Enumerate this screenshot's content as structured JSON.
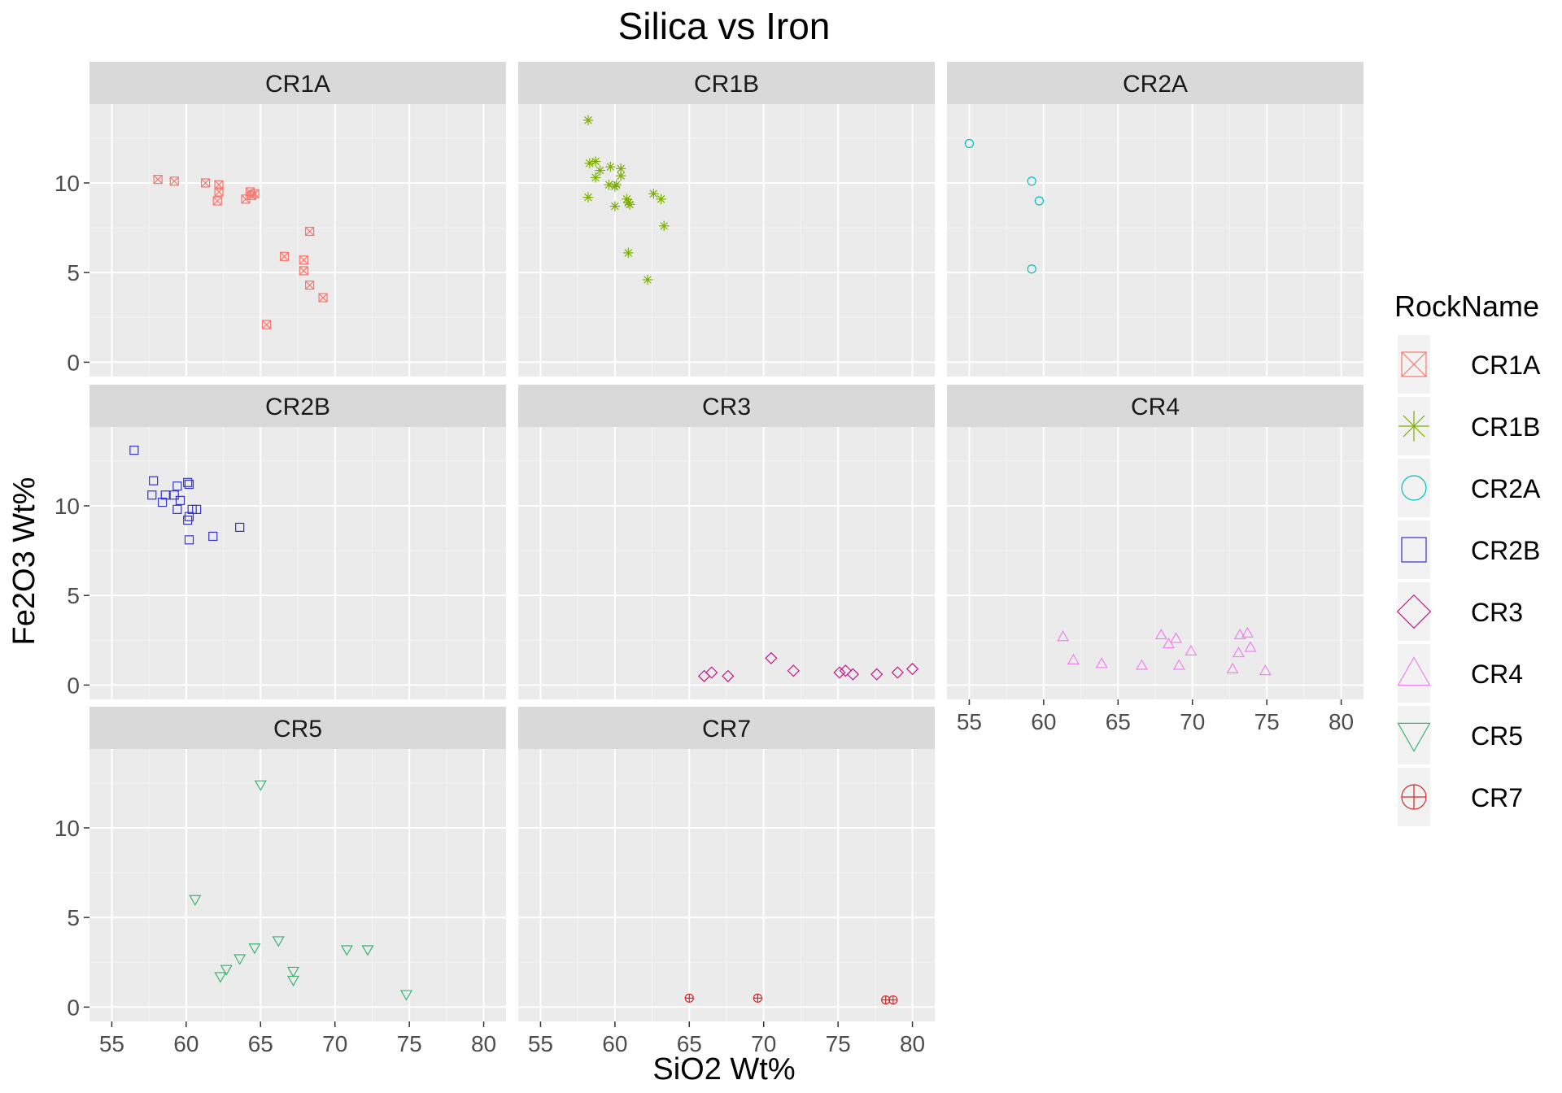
{
  "chart_data": {
    "type": "scatter",
    "title": "Silica vs Iron",
    "xlabel": "SiO2 Wt%",
    "ylabel": "Fe2O3 Wt%",
    "xlim": [
      53.5,
      81.5
    ],
    "ylim": [
      -0.8,
      14.4
    ],
    "x_ticks": [
      55,
      60,
      65,
      70,
      75,
      80
    ],
    "y_ticks": [
      0,
      5,
      10
    ],
    "grid": true,
    "legend_title": "RockName",
    "legend_position": "right",
    "series": [
      {
        "name": "CR1A",
        "color": "#f8766d",
        "shape": "square-cross",
        "points": [
          [
            58.1,
            10.2
          ],
          [
            59.2,
            10.1
          ],
          [
            61.3,
            10.0
          ],
          [
            62.2,
            9.9
          ],
          [
            62.2,
            9.5
          ],
          [
            62.1,
            9.0
          ],
          [
            64.0,
            9.1
          ],
          [
            64.3,
            9.5
          ],
          [
            64.6,
            9.4
          ],
          [
            64.4,
            9.3
          ],
          [
            68.3,
            7.3
          ],
          [
            66.6,
            5.9
          ],
          [
            67.9,
            5.7
          ],
          [
            67.9,
            5.1
          ],
          [
            68.3,
            4.3
          ],
          [
            69.2,
            3.6
          ],
          [
            65.4,
            2.1
          ]
        ]
      },
      {
        "name": "CR1B",
        "color": "#7cae00",
        "shape": "asterisk",
        "points": [
          [
            58.2,
            13.5
          ],
          [
            58.3,
            11.1
          ],
          [
            58.7,
            11.2
          ],
          [
            59.0,
            10.7
          ],
          [
            58.7,
            10.3
          ],
          [
            59.7,
            10.9
          ],
          [
            60.4,
            10.8
          ],
          [
            60.4,
            10.4
          ],
          [
            59.6,
            9.9
          ],
          [
            60.1,
            9.9
          ],
          [
            60.0,
            9.8
          ],
          [
            58.2,
            9.2
          ],
          [
            62.6,
            9.4
          ],
          [
            63.1,
            9.1
          ],
          [
            60.8,
            9.1
          ],
          [
            60.9,
            8.9
          ],
          [
            61.0,
            8.8
          ],
          [
            60.0,
            8.7
          ],
          [
            63.3,
            7.6
          ],
          [
            60.9,
            6.1
          ],
          [
            62.2,
            4.6
          ]
        ]
      },
      {
        "name": "CR2A",
        "color": "#00bfc4",
        "shape": "circle",
        "points": [
          [
            55.0,
            12.2
          ],
          [
            59.2,
            10.1
          ],
          [
            59.7,
            9.0
          ],
          [
            59.2,
            5.2
          ]
        ]
      },
      {
        "name": "CR2B",
        "color": "#3333cc",
        "shape": "square",
        "points": [
          [
            56.5,
            13.1
          ],
          [
            57.8,
            11.4
          ],
          [
            57.7,
            10.6
          ],
          [
            58.4,
            10.2
          ],
          [
            58.6,
            10.6
          ],
          [
            59.2,
            10.6
          ],
          [
            59.4,
            11.1
          ],
          [
            59.6,
            10.3
          ],
          [
            59.4,
            9.8
          ],
          [
            60.1,
            11.3
          ],
          [
            60.2,
            11.2
          ],
          [
            60.4,
            9.8
          ],
          [
            60.7,
            9.8
          ],
          [
            60.2,
            9.4
          ],
          [
            60.1,
            9.2
          ],
          [
            60.2,
            8.1
          ],
          [
            61.8,
            8.3
          ],
          [
            63.6,
            8.8
          ]
        ]
      },
      {
        "name": "CR3",
        "color": "#c71585",
        "shape": "diamond",
        "points": [
          [
            66.0,
            0.5
          ],
          [
            66.5,
            0.7
          ],
          [
            67.6,
            0.5
          ],
          [
            70.5,
            1.5
          ],
          [
            72.0,
            0.8
          ],
          [
            75.1,
            0.7
          ],
          [
            75.5,
            0.8
          ],
          [
            76.0,
            0.6
          ],
          [
            77.6,
            0.6
          ],
          [
            79.0,
            0.7
          ],
          [
            80.0,
            0.9
          ]
        ]
      },
      {
        "name": "CR4",
        "color": "#ee82ee",
        "shape": "triangle-up",
        "points": [
          [
            61.3,
            2.7
          ],
          [
            62.0,
            1.4
          ],
          [
            63.9,
            1.2
          ],
          [
            66.6,
            1.1
          ],
          [
            67.9,
            2.8
          ],
          [
            68.4,
            2.3
          ],
          [
            68.9,
            2.6
          ],
          [
            69.1,
            1.1
          ],
          [
            69.9,
            1.9
          ],
          [
            72.7,
            0.9
          ],
          [
            73.1,
            1.8
          ],
          [
            73.2,
            2.8
          ],
          [
            73.7,
            2.9
          ],
          [
            73.9,
            2.1
          ],
          [
            74.9,
            0.8
          ]
        ]
      },
      {
        "name": "CR5",
        "color": "#3cb371",
        "shape": "triangle-down",
        "points": [
          [
            65.0,
            12.4
          ],
          [
            60.6,
            6.0
          ],
          [
            66.2,
            3.7
          ],
          [
            64.6,
            3.3
          ],
          [
            63.6,
            2.7
          ],
          [
            62.7,
            2.1
          ],
          [
            62.3,
            1.7
          ],
          [
            67.2,
            2.0
          ],
          [
            67.2,
            1.5
          ],
          [
            70.8,
            3.2
          ],
          [
            72.2,
            3.2
          ],
          [
            74.8,
            0.7
          ]
        ]
      },
      {
        "name": "CR7",
        "color": "#d62728",
        "shape": "circle-plus",
        "points": [
          [
            65.0,
            0.5
          ],
          [
            69.6,
            0.5
          ],
          [
            78.2,
            0.4
          ],
          [
            78.7,
            0.4
          ]
        ]
      }
    ]
  }
}
